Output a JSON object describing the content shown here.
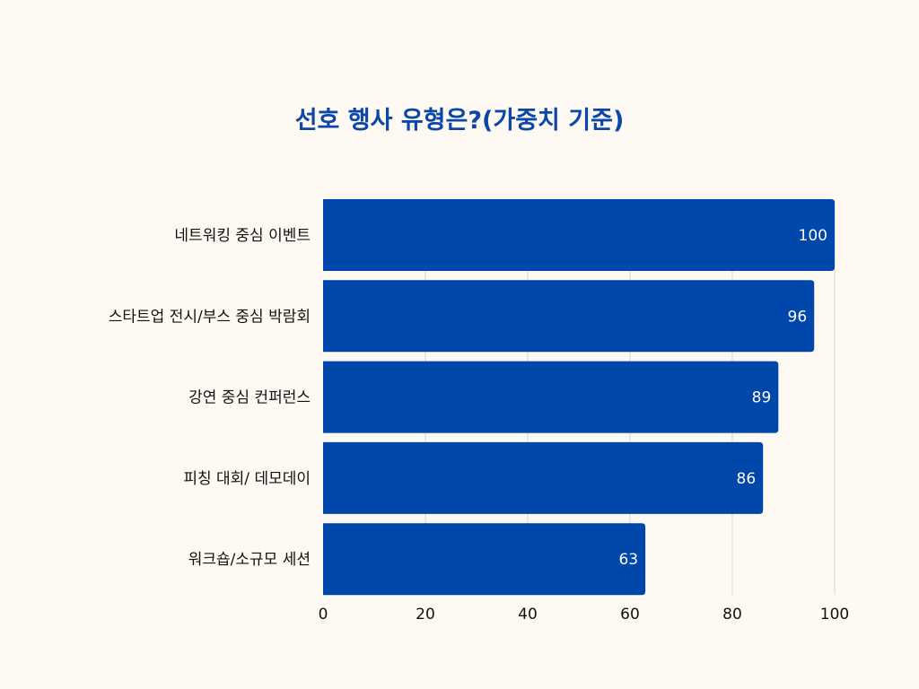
{
  "chart_data": {
    "type": "bar",
    "orientation": "horizontal",
    "title": "선호 행사 유형은?(가중치 기준)",
    "categories": [
      "네트워킹 중심 이벤트",
      "스타트업 전시/부스 중심 박람회",
      "강연 중심 컨퍼런스",
      "피칭 대회/ 데모데이",
      "워크숍/소규모 세션"
    ],
    "values": [
      100,
      96,
      89,
      86,
      63
    ],
    "xlim": [
      0,
      100
    ],
    "xticks": [
      0,
      20,
      40,
      60,
      80,
      100
    ],
    "xlabel": "",
    "ylabel": "",
    "grid": true,
    "legend": "none",
    "bar_color": "#0047AB",
    "value_label_color": "#FFFFFF",
    "title_color": "#0A47A8",
    "background_color": "#FFF9F3"
  }
}
